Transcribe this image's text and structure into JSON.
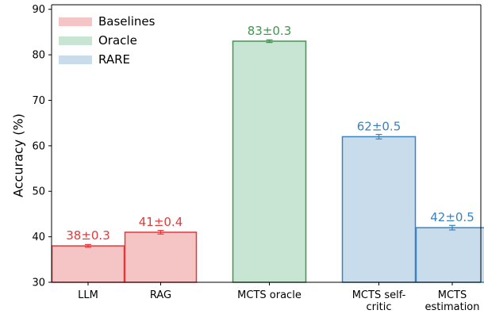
{
  "chart_data": {
    "type": "bar",
    "title": "",
    "xlabel": "",
    "ylabel": "Accuracy (%)",
    "ylim": [
      30,
      91
    ],
    "yticks": [
      30,
      40,
      50,
      60,
      70,
      80,
      90
    ],
    "grid": false,
    "legend_position": "top-left",
    "legend": [
      {
        "name": "Baselines",
        "fill": "#f5c5c5",
        "stroke": "#e03a3a"
      },
      {
        "name": "Oracle",
        "fill": "#c8e4d2",
        "stroke": "#3a9a4a"
      },
      {
        "name": "RARE",
        "fill": "#c9dcec",
        "stroke": "#3a82c0"
      }
    ],
    "bars": [
      {
        "category": [
          "LLM"
        ],
        "group": "Baselines",
        "value": 38,
        "error": 0.3,
        "label": "38±0.3"
      },
      {
        "category": [
          "RAG"
        ],
        "group": "Baselines",
        "value": 41,
        "error": 0.4,
        "label": "41±0.4"
      },
      {
        "category": [
          "MCTS oracle"
        ],
        "group": "Oracle",
        "value": 83,
        "error": 0.3,
        "label": "83±0.3"
      },
      {
        "category": [
          "MCTS self-",
          "critic"
        ],
        "group": "RARE",
        "value": 62,
        "error": 0.5,
        "label": "62±0.5"
      },
      {
        "category": [
          "MCTS",
          "estimation"
        ],
        "group": "RARE",
        "value": 42,
        "error": 0.5,
        "label": "42±0.5"
      }
    ],
    "label_colors": {
      "Baselines": "#e03a3a",
      "Oracle": "#3a9a4a",
      "RARE": "#3a82c0"
    }
  }
}
